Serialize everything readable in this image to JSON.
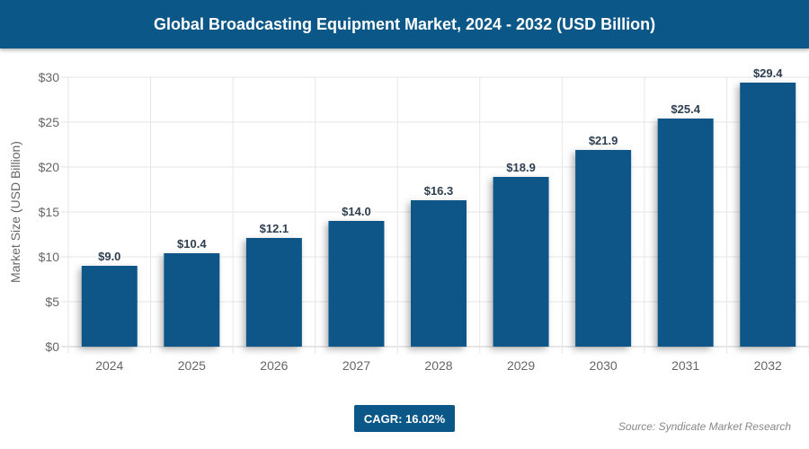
{
  "title": "Global Broadcasting Equipment Market, 2024 - 2032 (USD Billion)",
  "cagr": "CAGR: 16.02%",
  "source": "Source: Syndicate Market Research",
  "colors": {
    "bar": "#0b5787",
    "header": "#0b5787"
  },
  "chart_data": {
    "type": "bar",
    "title": "Global Broadcasting Equipment Market, 2024 - 2032 (USD Billion)",
    "xlabel": "",
    "ylabel": "Market Size (USD Billion)",
    "categories": [
      "2024",
      "2025",
      "2026",
      "2027",
      "2028",
      "2029",
      "2030",
      "2031",
      "2032"
    ],
    "values": [
      9.0,
      10.4,
      12.1,
      14.0,
      16.3,
      18.9,
      21.9,
      25.4,
      29.4
    ],
    "data_labels": [
      "$9.0",
      "$10.4",
      "$12.1",
      "$14.0",
      "$16.3",
      "$18.9",
      "$21.9",
      "$25.4",
      "$29.4"
    ],
    "ylim": [
      0,
      30
    ],
    "yticks": [
      0,
      5,
      10,
      15,
      20,
      25,
      30
    ],
    "ytick_labels": [
      "$0",
      "$5",
      "$10",
      "$15",
      "$20",
      "$25",
      "$30"
    ],
    "grid": true
  }
}
